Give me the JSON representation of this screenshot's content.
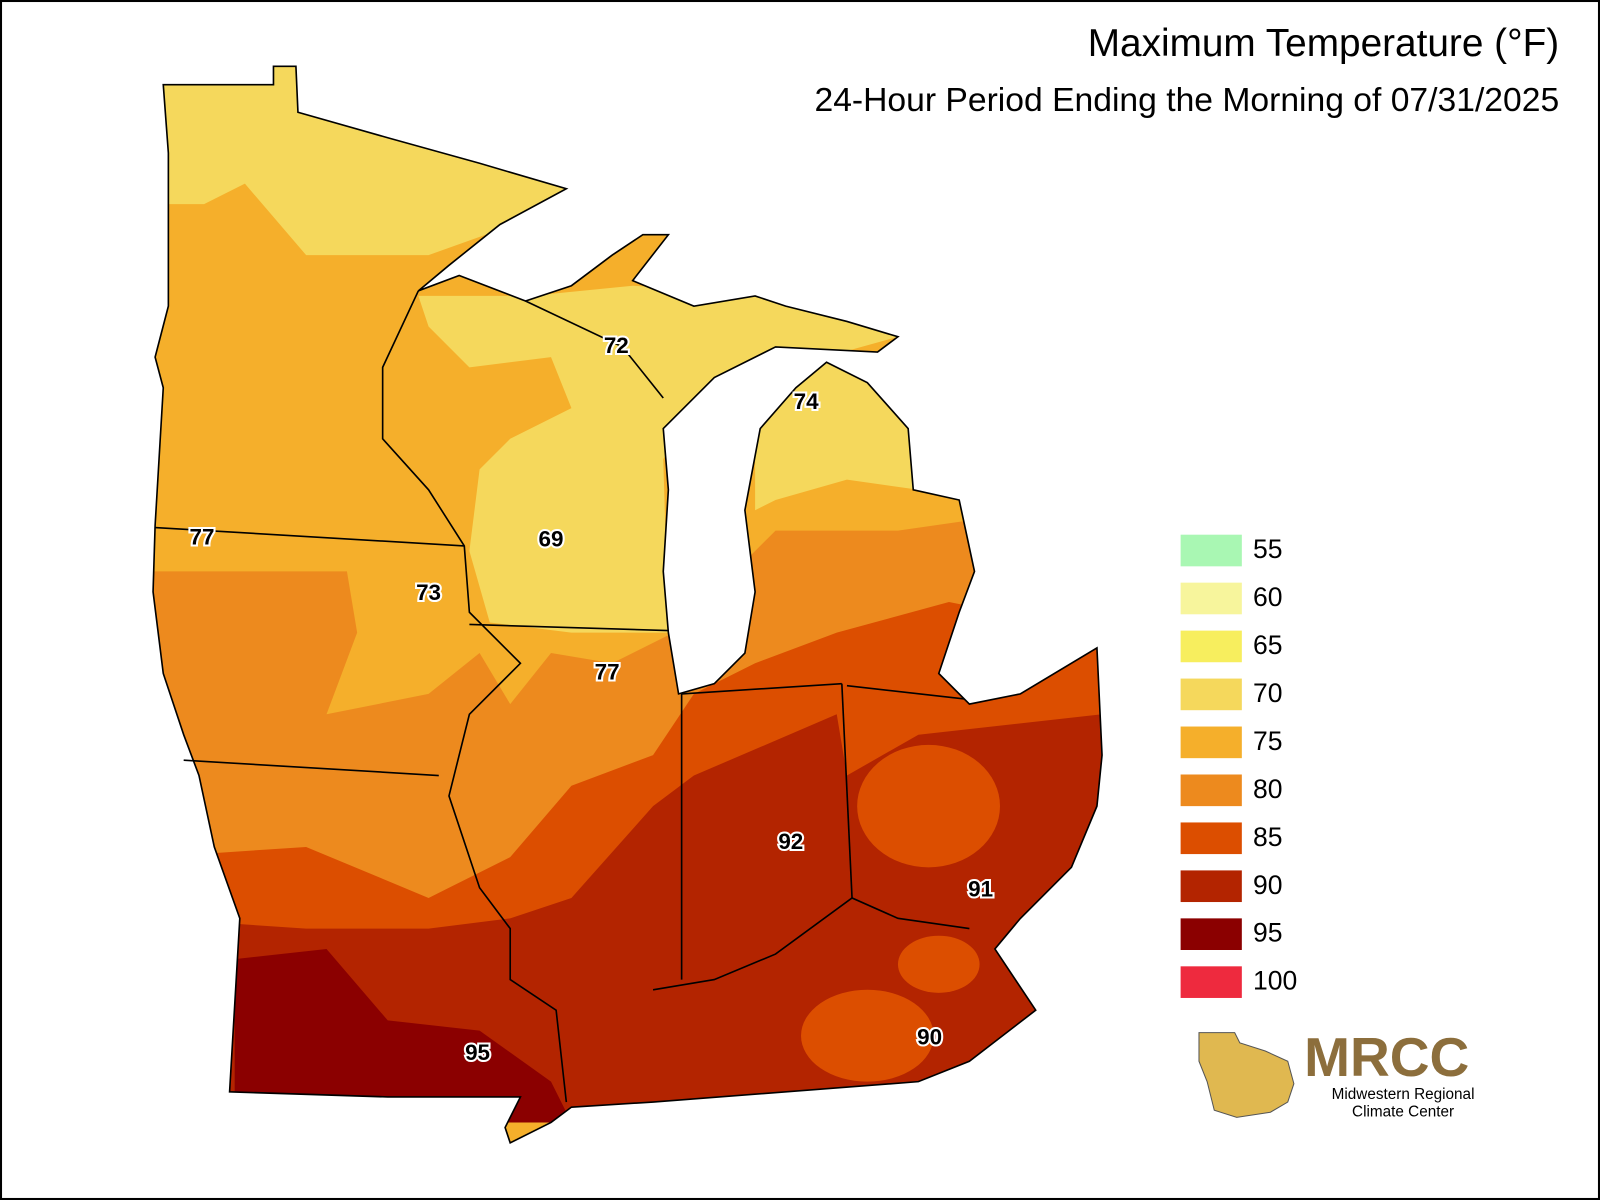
{
  "header": {
    "title": "Maximum Temperature (°F)",
    "subtitle": "24-Hour Period Ending the Morning of 07/31/2025"
  },
  "legend": {
    "items": [
      {
        "value": 55,
        "color": "#a9f7b3"
      },
      {
        "value": 60,
        "color": "#f7f59c"
      },
      {
        "value": 65,
        "color": "#f7ee5e"
      },
      {
        "value": 70,
        "color": "#f5d85c"
      },
      {
        "value": 75,
        "color": "#f5af2b"
      },
      {
        "value": 80,
        "color": "#ed8a1e"
      },
      {
        "value": 85,
        "color": "#dc4e00"
      },
      {
        "value": 90,
        "color": "#b32400"
      },
      {
        "value": 95,
        "color": "#8b0000"
      },
      {
        "value": 100,
        "color": "#ee2a3e"
      }
    ]
  },
  "map": {
    "labels": [
      72,
      74,
      69,
      77,
      73,
      77,
      92,
      91,
      90,
      95
    ]
  },
  "logo": {
    "name": "MRCC",
    "line1": "Midwestern Regional",
    "line2": "Climate Center"
  }
}
